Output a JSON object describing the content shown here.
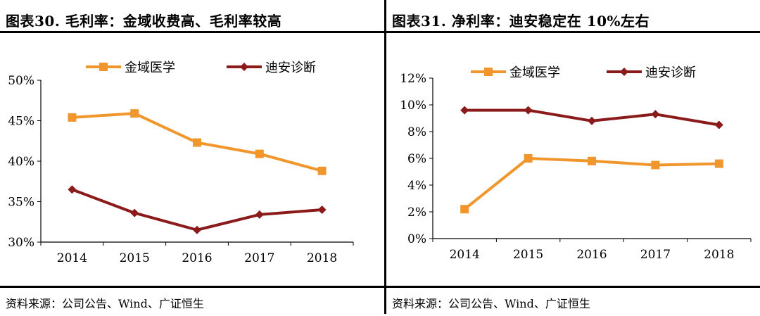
{
  "panels": [
    {
      "title": "图表30.  毛利率：金域收费高、毛利率较高",
      "source": "资料来源：公司公告、Wind、广证恒生"
    },
    {
      "title": "图表31.  净利率：迪安稳定在 10%左右",
      "source": "资料来源：公司公告、Wind、广证恒生"
    }
  ],
  "chart_data": [
    {
      "type": "line",
      "title": "毛利率：金域收费高、毛利率较高",
      "categories": [
        "2014",
        "2015",
        "2016",
        "2017",
        "2018"
      ],
      "ylim": [
        30,
        50
      ],
      "yticks": [
        30,
        35,
        40,
        45,
        50
      ],
      "ytick_labels": [
        "30%",
        "35%",
        "40%",
        "45%",
        "50%"
      ],
      "legend_position": "top",
      "series": [
        {
          "name": "金域医学",
          "color": "#F0962D",
          "marker": "square",
          "values": [
            45.4,
            45.9,
            42.3,
            40.9,
            38.8
          ]
        },
        {
          "name": "迪安诊断",
          "color": "#8B1A1A",
          "marker": "diamond",
          "values": [
            36.5,
            33.6,
            31.5,
            33.4,
            34.0
          ]
        }
      ]
    },
    {
      "type": "line",
      "title": "净利率：迪安稳定在10%左右",
      "categories": [
        "2014",
        "2015",
        "2016",
        "2017",
        "2018"
      ],
      "ylim": [
        0,
        12
      ],
      "yticks": [
        0,
        2,
        4,
        6,
        8,
        10,
        12
      ],
      "ytick_labels": [
        "0%",
        "2%",
        "4%",
        "6%",
        "8%",
        "10%",
        "12%"
      ],
      "legend_position": "top",
      "series": [
        {
          "name": "金域医学",
          "color": "#F0962D",
          "marker": "square",
          "values": [
            2.2,
            6.0,
            5.8,
            5.5,
            5.6
          ]
        },
        {
          "name": "迪安诊断",
          "color": "#8B1A1A",
          "marker": "diamond",
          "values": [
            9.6,
            9.6,
            8.8,
            9.3,
            8.5
          ]
        }
      ]
    }
  ]
}
